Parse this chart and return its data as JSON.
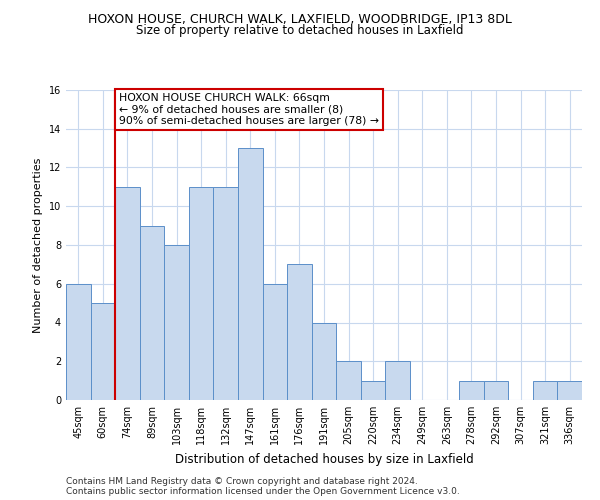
{
  "title": "HOXON HOUSE, CHURCH WALK, LAXFIELD, WOODBRIDGE, IP13 8DL",
  "subtitle": "Size of property relative to detached houses in Laxfield",
  "xlabel": "Distribution of detached houses by size in Laxfield",
  "ylabel": "Number of detached properties",
  "categories": [
    "45sqm",
    "60sqm",
    "74sqm",
    "89sqm",
    "103sqm",
    "118sqm",
    "132sqm",
    "147sqm",
    "161sqm",
    "176sqm",
    "191sqm",
    "205sqm",
    "220sqm",
    "234sqm",
    "249sqm",
    "263sqm",
    "278sqm",
    "292sqm",
    "307sqm",
    "321sqm",
    "336sqm"
  ],
  "values": [
    6,
    5,
    11,
    9,
    8,
    11,
    11,
    13,
    6,
    7,
    4,
    2,
    1,
    2,
    0,
    0,
    1,
    1,
    0,
    1,
    1
  ],
  "bar_color": "#c8d9ee",
  "bar_edge_color": "#5b8fc9",
  "vline_x": 1.5,
  "vline_color": "#cc0000",
  "annotation_text": "HOXON HOUSE CHURCH WALK: 66sqm\n← 9% of detached houses are smaller (8)\n90% of semi-detached houses are larger (78) →",
  "annotation_box_facecolor": "#ffffff",
  "annotation_box_edgecolor": "#cc0000",
  "ylim": [
    0,
    16
  ],
  "yticks": [
    0,
    2,
    4,
    6,
    8,
    10,
    12,
    14,
    16
  ],
  "grid_color": "#c8d8ee",
  "footer_line1": "Contains HM Land Registry data © Crown copyright and database right 2024.",
  "footer_line2": "Contains public sector information licensed under the Open Government Licence v3.0.",
  "background_color": "#ffffff",
  "title_fontsize": 9,
  "subtitle_fontsize": 8.5,
  "ylabel_fontsize": 8,
  "xlabel_fontsize": 8.5,
  "annotation_fontsize": 7.8,
  "tick_fontsize": 7,
  "footer_fontsize": 6.5
}
